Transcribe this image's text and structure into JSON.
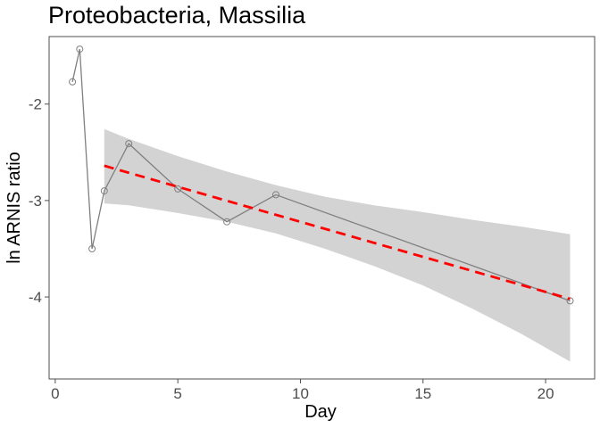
{
  "chart_data": {
    "type": "line",
    "title": "Proteobacteria, Massilia",
    "xlabel": "Day",
    "ylabel": "ln ARNIS ratio",
    "xlim": [
      -0.25,
      22.0
    ],
    "ylim": [
      -4.85,
      -1.3
    ],
    "xticks": [
      0,
      5,
      10,
      15,
      20
    ],
    "yticks": [
      -2,
      -3,
      -4
    ],
    "grid": false,
    "legend": "none",
    "series": [
      {
        "style": "gray line with open circle markers",
        "color": "#808080",
        "x": [
          0.7,
          1.0,
          1.5,
          2.0,
          3.0,
          5.0,
          7.0,
          9.0,
          21.0
        ],
        "y": [
          -1.77,
          -1.43,
          -3.5,
          -2.9,
          -2.41,
          -2.88,
          -3.22,
          -2.94,
          -4.04
        ]
      }
    ],
    "trend": {
      "style": "red dashed regression line",
      "color": "#ff0000",
      "x": [
        2.0,
        21.0
      ],
      "y": [
        -2.64,
        -4.02
      ]
    },
    "confidence_band": {
      "color": "#d3d3d3",
      "x": [
        2,
        3,
        5,
        7,
        9,
        11,
        13,
        15,
        17,
        19,
        21
      ],
      "upper": [
        -2.26,
        -2.36,
        -2.54,
        -2.7,
        -2.84,
        -2.96,
        -3.05,
        -3.12,
        -3.2,
        -3.27,
        -3.35
      ],
      "lower": [
        -3.03,
        -3.05,
        -3.13,
        -3.22,
        -3.34,
        -3.5,
        -3.68,
        -3.88,
        -4.12,
        -4.38,
        -4.67
      ]
    }
  }
}
